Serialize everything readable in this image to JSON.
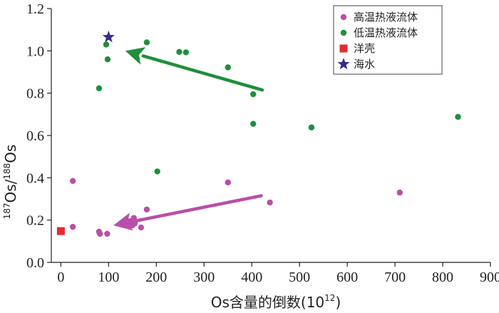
{
  "chart_data": {
    "type": "scatter",
    "xlabel_main": "Os含量的倒数(10",
    "xlabel_sup": "12",
    "xlabel_tail": ")",
    "ylabel_sup1": "187",
    "ylabel_mid": "Os/",
    "ylabel_sup2": "188",
    "ylabel_tail": "Os",
    "xlim": [
      -20,
      900
    ],
    "ylim": [
      0,
      1.2
    ],
    "x_ticks": [
      0,
      100,
      200,
      300,
      400,
      500,
      600,
      700,
      800,
      900
    ],
    "y_ticks": [
      0.0,
      0.2,
      0.4,
      0.6,
      0.8,
      1.0,
      1.2
    ],
    "x_tick_labels": [
      "0",
      "100",
      "200",
      "300",
      "400",
      "500",
      "600",
      "700",
      "800",
      "900"
    ],
    "y_tick_labels": [
      "0.0",
      "0.2",
      "0.4",
      "0.6",
      "0.8",
      "1.0",
      "1.2"
    ],
    "grid": false,
    "legend_position": "top-right",
    "series": [
      {
        "name": "高温热液流体",
        "color": "#b94fa8",
        "marker": "circle",
        "points": [
          [
            25,
            0.385
          ],
          [
            25,
            0.168
          ],
          [
            80,
            0.145
          ],
          [
            82,
            0.135
          ],
          [
            97,
            0.135
          ],
          [
            140,
            0.18
          ],
          [
            145,
            0.195
          ],
          [
            150,
            0.175
          ],
          [
            153,
            0.21
          ],
          [
            155,
            0.185
          ],
          [
            168,
            0.165
          ],
          [
            180,
            0.25
          ],
          [
            350,
            0.378
          ],
          [
            438,
            0.283
          ],
          [
            710,
            0.33
          ]
        ]
      },
      {
        "name": "低温热液流体",
        "color": "#1f8f3a",
        "marker": "circle",
        "points": [
          [
            80,
            0.823
          ],
          [
            95,
            1.03
          ],
          [
            98,
            0.96
          ],
          [
            180,
            1.04
          ],
          [
            202,
            0.43
          ],
          [
            248,
            0.995
          ],
          [
            262,
            0.993
          ],
          [
            350,
            0.922
          ],
          [
            403,
            0.795
          ],
          [
            403,
            0.655
          ],
          [
            525,
            0.638
          ],
          [
            832,
            0.688
          ]
        ]
      },
      {
        "name": "洋壳",
        "color": "#e8292b",
        "marker": "square",
        "points": [
          [
            0,
            0.148
          ]
        ]
      },
      {
        "name": "海水",
        "color": "#3a2a8a",
        "marker": "star",
        "points": [
          [
            100,
            1.065
          ]
        ]
      }
    ],
    "arrows": [
      {
        "color": "#1f8f3a",
        "from": [
          422,
          0.815
        ],
        "to": [
          135,
          1.0
        ]
      },
      {
        "color": "#b94fa8",
        "from": [
          420,
          0.315
        ],
        "to": [
          110,
          0.175
        ]
      }
    ]
  }
}
